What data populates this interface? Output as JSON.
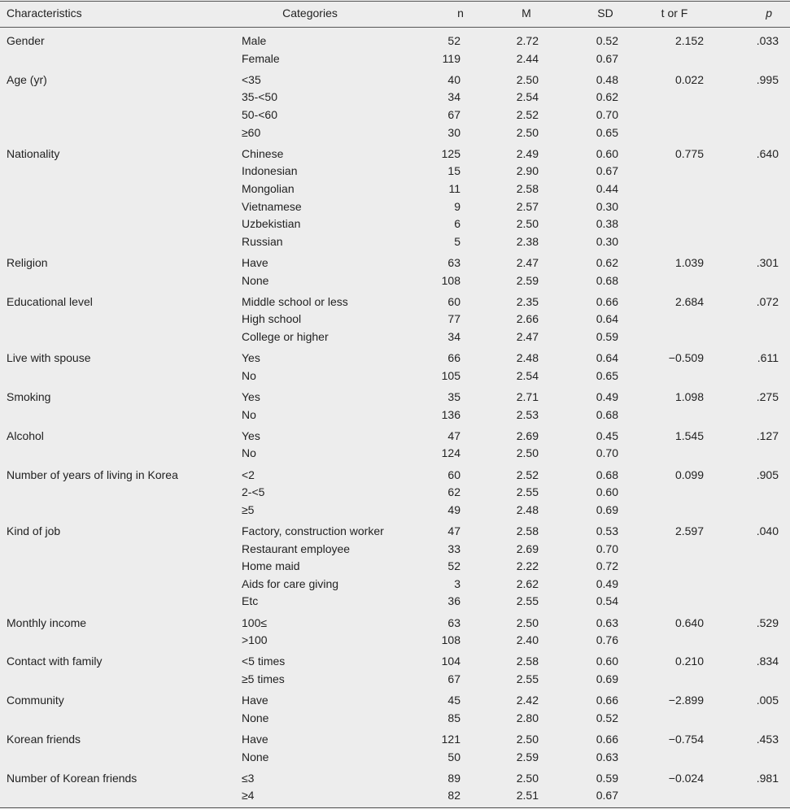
{
  "headers": {
    "characteristics": "Characteristics",
    "categories": "Categories",
    "n": "n",
    "m": "M",
    "sd": "SD",
    "t_or_f": "t or F",
    "p": "p"
  },
  "groups": [
    {
      "characteristic": "Gender",
      "stat": "2.152",
      "p": ".033",
      "rows": [
        {
          "category": "Male",
          "n": "52",
          "m": "2.72",
          "sd": "0.52"
        },
        {
          "category": "Female",
          "n": "119",
          "m": "2.44",
          "sd": "0.67"
        }
      ]
    },
    {
      "characteristic": "Age (yr)",
      "stat": "0.022",
      "p": ".995",
      "rows": [
        {
          "category": "<35",
          "n": "40",
          "m": "2.50",
          "sd": "0.48"
        },
        {
          "category": "35-<50",
          "n": "34",
          "m": "2.54",
          "sd": "0.62"
        },
        {
          "category": "50-<60",
          "n": "67",
          "m": "2.52",
          "sd": "0.70"
        },
        {
          "category": "≥60",
          "n": "30",
          "m": "2.50",
          "sd": "0.65"
        }
      ]
    },
    {
      "characteristic": "Nationality",
      "stat": "0.775",
      "p": ".640",
      "rows": [
        {
          "category": "Chinese",
          "n": "125",
          "m": "2.49",
          "sd": "0.60"
        },
        {
          "category": "Indonesian",
          "n": "15",
          "m": "2.90",
          "sd": "0.67"
        },
        {
          "category": "Mongolian",
          "n": "11",
          "m": "2.58",
          "sd": "0.44"
        },
        {
          "category": "Vietnamese",
          "n": "9",
          "m": "2.57",
          "sd": "0.30"
        },
        {
          "category": "Uzbekistian",
          "n": "6",
          "m": "2.50",
          "sd": "0.38"
        },
        {
          "category": "Russian",
          "n": "5",
          "m": "2.38",
          "sd": "0.30"
        }
      ]
    },
    {
      "characteristic": "Religion",
      "stat": "1.039",
      "p": ".301",
      "rows": [
        {
          "category": "Have",
          "n": "63",
          "m": "2.47",
          "sd": "0.62"
        },
        {
          "category": "None",
          "n": "108",
          "m": "2.59",
          "sd": "0.68"
        }
      ]
    },
    {
      "characteristic": "Educational level",
      "stat": "2.684",
      "p": ".072",
      "rows": [
        {
          "category": "Middle school or less",
          "n": "60",
          "m": "2.35",
          "sd": "0.66"
        },
        {
          "category": "High school",
          "n": "77",
          "m": "2.66",
          "sd": "0.64"
        },
        {
          "category": "College or higher",
          "n": "34",
          "m": "2.47",
          "sd": "0.59"
        }
      ]
    },
    {
      "characteristic": "Live with spouse",
      "stat": "−0.509",
      "p": ".611",
      "rows": [
        {
          "category": "Yes",
          "n": "66",
          "m": "2.48",
          "sd": "0.64"
        },
        {
          "category": "No",
          "n": "105",
          "m": "2.54",
          "sd": "0.65"
        }
      ]
    },
    {
      "characteristic": "Smoking",
      "stat": "1.098",
      "p": ".275",
      "rows": [
        {
          "category": "Yes",
          "n": "35",
          "m": "2.71",
          "sd": "0.49"
        },
        {
          "category": "No",
          "n": "136",
          "m": "2.53",
          "sd": "0.68"
        }
      ]
    },
    {
      "characteristic": "Alcohol",
      "stat": "1.545",
      "p": ".127",
      "rows": [
        {
          "category": "Yes",
          "n": "47",
          "m": "2.69",
          "sd": "0.45"
        },
        {
          "category": "No",
          "n": "124",
          "m": "2.50",
          "sd": "0.70"
        }
      ]
    },
    {
      "characteristic": "Number of years of living in Korea",
      "stat": "0.099",
      "p": ".905",
      "rows": [
        {
          "category": "<2",
          "n": "60",
          "m": "2.52",
          "sd": "0.68"
        },
        {
          "category": "2-<5",
          "n": "62",
          "m": "2.55",
          "sd": "0.60"
        },
        {
          "category": "≥5",
          "n": "49",
          "m": "2.48",
          "sd": "0.69"
        }
      ]
    },
    {
      "characteristic": "Kind of job",
      "stat": "2.597",
      "p": ".040",
      "rows": [
        {
          "category": "Factory, construction worker",
          "n": "47",
          "m": "2.58",
          "sd": "0.53"
        },
        {
          "category": "Restaurant employee",
          "n": "33",
          "m": "2.69",
          "sd": "0.70"
        },
        {
          "category": "Home maid",
          "n": "52",
          "m": "2.22",
          "sd": "0.72"
        },
        {
          "category": "Aids for care giving",
          "n": "3",
          "m": "2.62",
          "sd": "0.49"
        },
        {
          "category": "Etc",
          "n": "36",
          "m": "2.55",
          "sd": "0.54"
        }
      ]
    },
    {
      "characteristic": "Monthly income",
      "stat": "0.640",
      "p": ".529",
      "rows": [
        {
          "category": "100≤",
          "n": "63",
          "m": "2.50",
          "sd": "0.63"
        },
        {
          "category": ">100",
          "n": "108",
          "m": "2.40",
          "sd": "0.76"
        }
      ]
    },
    {
      "characteristic": "Contact with family",
      "stat": "0.210",
      "p": ".834",
      "rows": [
        {
          "category": "<5 times",
          "n": "104",
          "m": "2.58",
          "sd": "0.60"
        },
        {
          "category": "≥5 times",
          "n": "67",
          "m": "2.55",
          "sd": "0.69"
        }
      ]
    },
    {
      "characteristic": "Community",
      "stat": "−2.899",
      "p": ".005",
      "rows": [
        {
          "category": "Have",
          "n": "45",
          "m": "2.42",
          "sd": "0.66"
        },
        {
          "category": "None",
          "n": "85",
          "m": "2.80",
          "sd": "0.52"
        }
      ]
    },
    {
      "characteristic": "Korean friends",
      "stat": "−0.754",
      "p": ".453",
      "rows": [
        {
          "category": "Have",
          "n": "121",
          "m": "2.50",
          "sd": "0.66"
        },
        {
          "category": "None",
          "n": "50",
          "m": "2.59",
          "sd": "0.63"
        }
      ]
    },
    {
      "characteristic": "Number of Korean friends",
      "stat": "−0.024",
      "p": ".981",
      "rows": [
        {
          "category": "≤3",
          "n": "89",
          "m": "2.50",
          "sd": "0.59"
        },
        {
          "category": "≥4",
          "n": "82",
          "m": "2.51",
          "sd": "0.67"
        }
      ]
    }
  ]
}
